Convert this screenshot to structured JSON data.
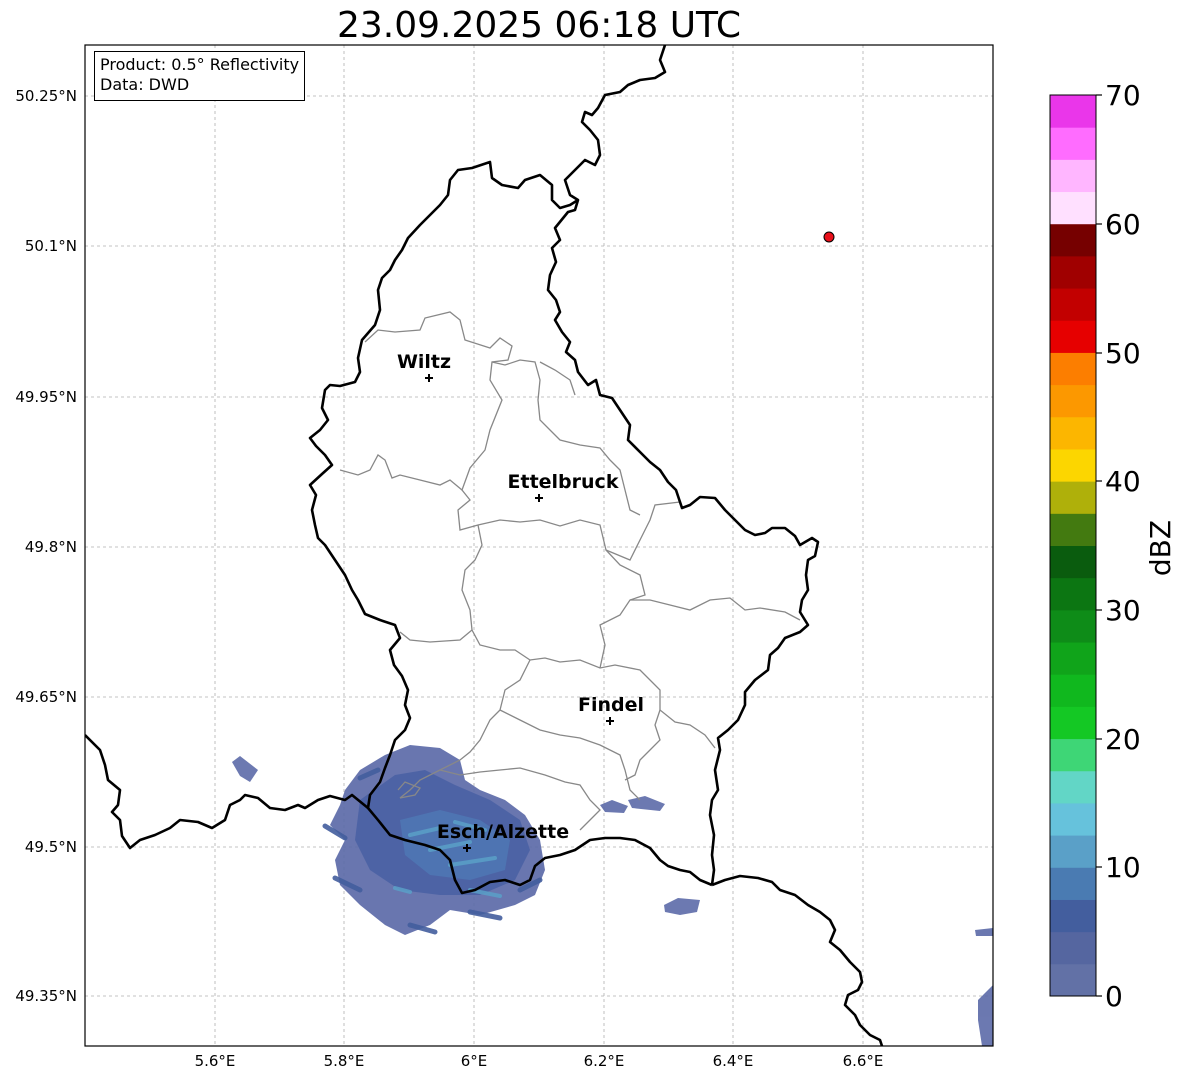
{
  "title": "23.09.2025 06:18 UTC",
  "info_box": {
    "product": "Product: 0.5° Reflectivity",
    "source": "Data: DWD"
  },
  "axes": {
    "lon_ticks": [
      "5.6°E",
      "5.8°E",
      "6°E",
      "6.2°E",
      "6.4°E",
      "6.6°E"
    ],
    "lat_ticks": [
      "50.25°N",
      "50.1°N",
      "49.95°N",
      "49.8°N",
      "49.65°N",
      "49.5°N",
      "49.35°N"
    ],
    "gridlines": true
  },
  "cities": [
    {
      "name": "Wiltz",
      "lon": 5.93,
      "lat": 49.97
    },
    {
      "name": "Ettelbruck",
      "lon": 6.1,
      "lat": 49.85
    },
    {
      "name": "Findel",
      "lon": 6.21,
      "lat": 49.63
    },
    {
      "name": "Esch/Alzette",
      "lon": 5.99,
      "lat": 49.5
    }
  ],
  "radar_site": {
    "lon": 6.55,
    "lat": 50.11,
    "color": "#e8101a"
  },
  "colorbar": {
    "label": "dBZ",
    "ticks": [
      "0",
      "10",
      "20",
      "30",
      "40",
      "50",
      "60",
      "70"
    ],
    "min": 0,
    "max": 70,
    "step": 2.5,
    "colors": [
      "#6271a6",
      "#5566a0",
      "#435e9e",
      "#4a7bb2",
      "#5aa0c8",
      "#66c2dc",
      "#62d6c6",
      "#3ed676",
      "#14c824",
      "#10b81e",
      "#10a41a",
      "#0e8c18",
      "#0c7612",
      "#0a5c0e",
      "#437a10",
      "#afb00a",
      "#fcd600",
      "#fcb600",
      "#fc9800",
      "#fc7e00",
      "#e60000",
      "#c20000",
      "#a00000",
      "#760000",
      "#ffe0ff",
      "#ffb6ff",
      "#ff6cff",
      "#ea36ea"
    ]
  },
  "echo_regions": [
    {
      "name": "main-cluster-south-luxembourg",
      "dbz_range": [
        0,
        17
      ]
    },
    {
      "name": "small-cell-west",
      "dbz_range": [
        0,
        5
      ]
    },
    {
      "name": "small-cell-east-schengen",
      "dbz_range": [
        0,
        5
      ]
    },
    {
      "name": "small-cell-southeast",
      "dbz_range": [
        0,
        5
      ]
    },
    {
      "name": "edge-cells-southeast-corner",
      "dbz_range": [
        0,
        5
      ]
    }
  ]
}
